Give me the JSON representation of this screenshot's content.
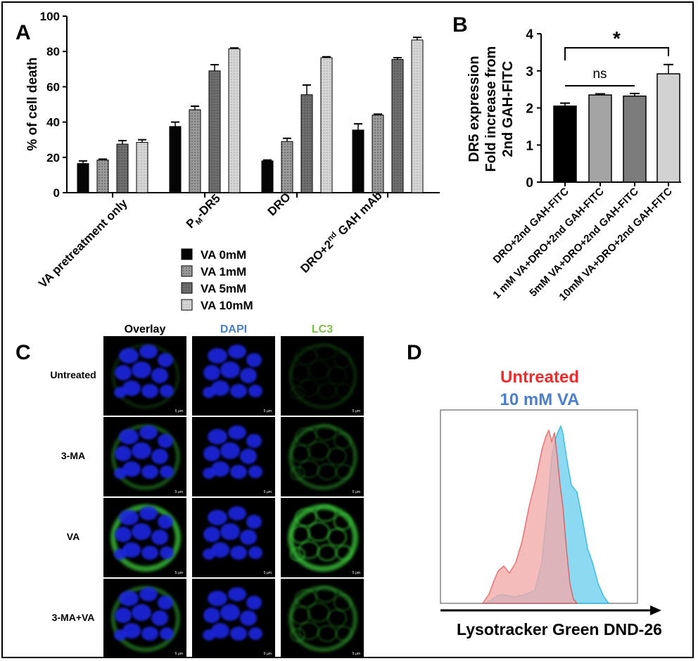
{
  "panels": {
    "a": "A",
    "b": "B",
    "c": "C",
    "d": "D"
  },
  "colors": {
    "va0": "#050505",
    "va1": "#9a9a9a",
    "va5": "#6e6e6e",
    "va10": "#d6d6d6",
    "b_bar1": "#000000",
    "b_bar2": "#a4a4a4",
    "b_bar3": "#7c7c7c",
    "b_bar4": "#d2d2d2",
    "untreated": "#ef2b2b",
    "va_blue": "#4a7fd0",
    "hist_red_fill": "#f3aaaa",
    "hist_blue_fill": "#7fd7f1",
    "hist_overlap": "#8aa6c2",
    "dapi": "#1a27e0",
    "lc3": "#38c038"
  },
  "chart_data": [
    {
      "id": "A",
      "type": "bar",
      "ylabel": "% of cell death",
      "ylim": [
        0,
        100
      ],
      "yticks": [
        "0",
        "20",
        "40",
        "60",
        "80",
        "100"
      ],
      "categories": [
        "VA pretreatment only",
        "PM-DR5",
        "DRO",
        "DRO+2nd GAH mAb"
      ],
      "category_labels": [
        {
          "main": "VA pretreatment only"
        },
        {
          "main": "P",
          "sub": "M",
          "rest": "-DR5"
        },
        {
          "main": "DRO"
        },
        {
          "main": "DRO+2",
          "sup": "nd",
          "rest": " GAH mAb"
        }
      ],
      "series": [
        {
          "name": "VA 0mM",
          "values": [
            16.5,
            37.5,
            18,
            35.5
          ],
          "errors": [
            1.5,
            2.5,
            0.5,
            3.5
          ]
        },
        {
          "name": "VA 1mM",
          "values": [
            18.5,
            47,
            29,
            44
          ],
          "errors": [
            0.5,
            2,
            1.8,
            0.5
          ]
        },
        {
          "name": "VA 5mM",
          "values": [
            27.5,
            69,
            55.5,
            75.5
          ],
          "errors": [
            2,
            3.5,
            5.5,
            1
          ]
        },
        {
          "name": "VA 10mM",
          "values": [
            28.5,
            81.5,
            76.5,
            86.5
          ],
          "errors": [
            1.5,
            0.5,
            0.5,
            1.5
          ]
        }
      ],
      "legend_position": "bottom-center"
    },
    {
      "id": "B",
      "type": "bar",
      "ylabel_lines": [
        "DR5 expression",
        "Fold increase from",
        "2nd GAH-FITC"
      ],
      "ylim": [
        0,
        4
      ],
      "yticks": [
        "0",
        "1",
        "2",
        "3",
        "4"
      ],
      "categories": [
        "DRO+2nd GAH-FITC",
        "1 mM VA+DRO+2nd GAH-FITC",
        "5mM VA+DRO+2nd GAH-FITC",
        "10mM VA+DRO+2nd GAH-FITC"
      ],
      "values": [
        2.05,
        2.35,
        2.32,
        2.92
      ],
      "errors": [
        0.08,
        0.03,
        0.07,
        0.25
      ],
      "annotations": [
        {
          "text": "ns",
          "from": 0,
          "to": 2
        },
        {
          "text": "*",
          "from": 0,
          "to": 3
        }
      ]
    },
    {
      "id": "D",
      "type": "area",
      "xlabel": "Lysotracker Green DND-26",
      "series": [
        {
          "name": "Untreated",
          "color": "#ef2b2b"
        },
        {
          "name": "10 mM VA",
          "color": "#4a7fd0"
        }
      ]
    }
  ],
  "microscopy": {
    "columns": [
      "Overlay",
      "DAPI",
      "LC3"
    ],
    "rows": [
      "Untreated",
      "3-MA",
      "VA",
      "3-MA+VA"
    ],
    "scale_bar": "5 μm"
  }
}
